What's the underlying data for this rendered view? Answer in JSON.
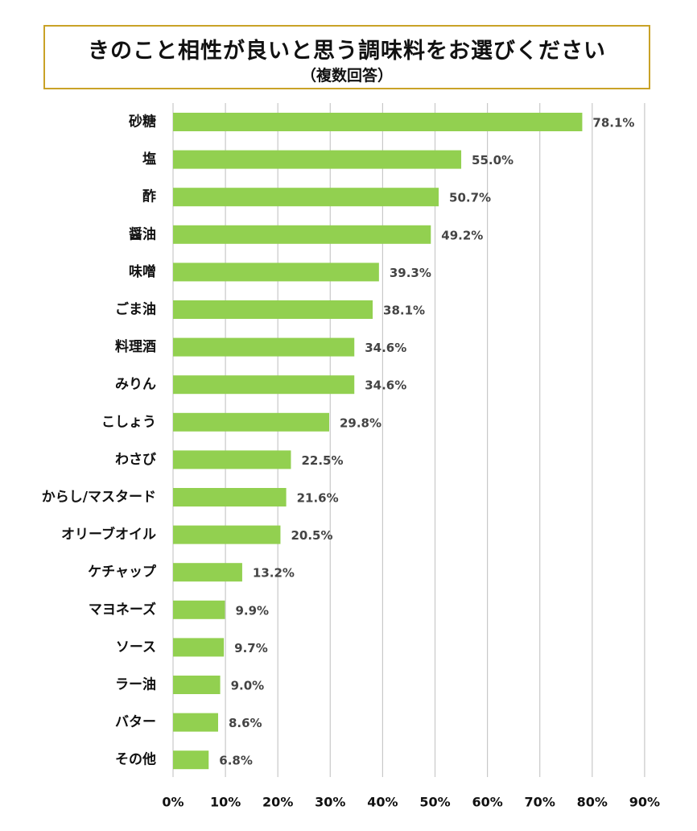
{
  "chart_data": {
    "type": "bar",
    "orientation": "horizontal",
    "title": "きのこと相性が良いと思う調味料をお選びください",
    "subtitle": "（複数回答）",
    "categories": [
      "砂糖",
      "塩",
      "酢",
      "醤油",
      "味噌",
      "ごま油",
      "料理酒",
      "みりん",
      "こしょう",
      "わさび",
      "からし/マスタード",
      "オリーブオイル",
      "ケチャップ",
      "マヨネーズ",
      "ソース",
      "ラー油",
      "バター",
      "その他"
    ],
    "values": [
      78.1,
      55.0,
      50.7,
      49.2,
      39.3,
      38.1,
      34.6,
      34.6,
      29.8,
      22.5,
      21.6,
      20.5,
      13.2,
      9.9,
      9.7,
      9.0,
      8.6,
      6.8
    ],
    "value_labels": [
      "78.1%",
      "55.0%",
      "50.7%",
      "49.2%",
      "39.3%",
      "38.1%",
      "34.6%",
      "34.6%",
      "29.8%",
      "22.5%",
      "21.6%",
      "20.5%",
      "13.2%",
      "9.9%",
      "9.7%",
      "9.0%",
      "8.6%",
      "6.8%"
    ],
    "xlim": [
      0,
      90
    ],
    "x_ticks": [
      0,
      10,
      20,
      30,
      40,
      50,
      60,
      70,
      80,
      90
    ],
    "x_tick_labels": [
      "0%",
      "10%",
      "20%",
      "30%",
      "40%",
      "50%",
      "60%",
      "70%",
      "80%",
      "90%"
    ],
    "grid": true,
    "legend": "none",
    "bar_color": "#92d050",
    "grid_color": "#c8c8c8",
    "title_border_color": "#c9a227"
  }
}
